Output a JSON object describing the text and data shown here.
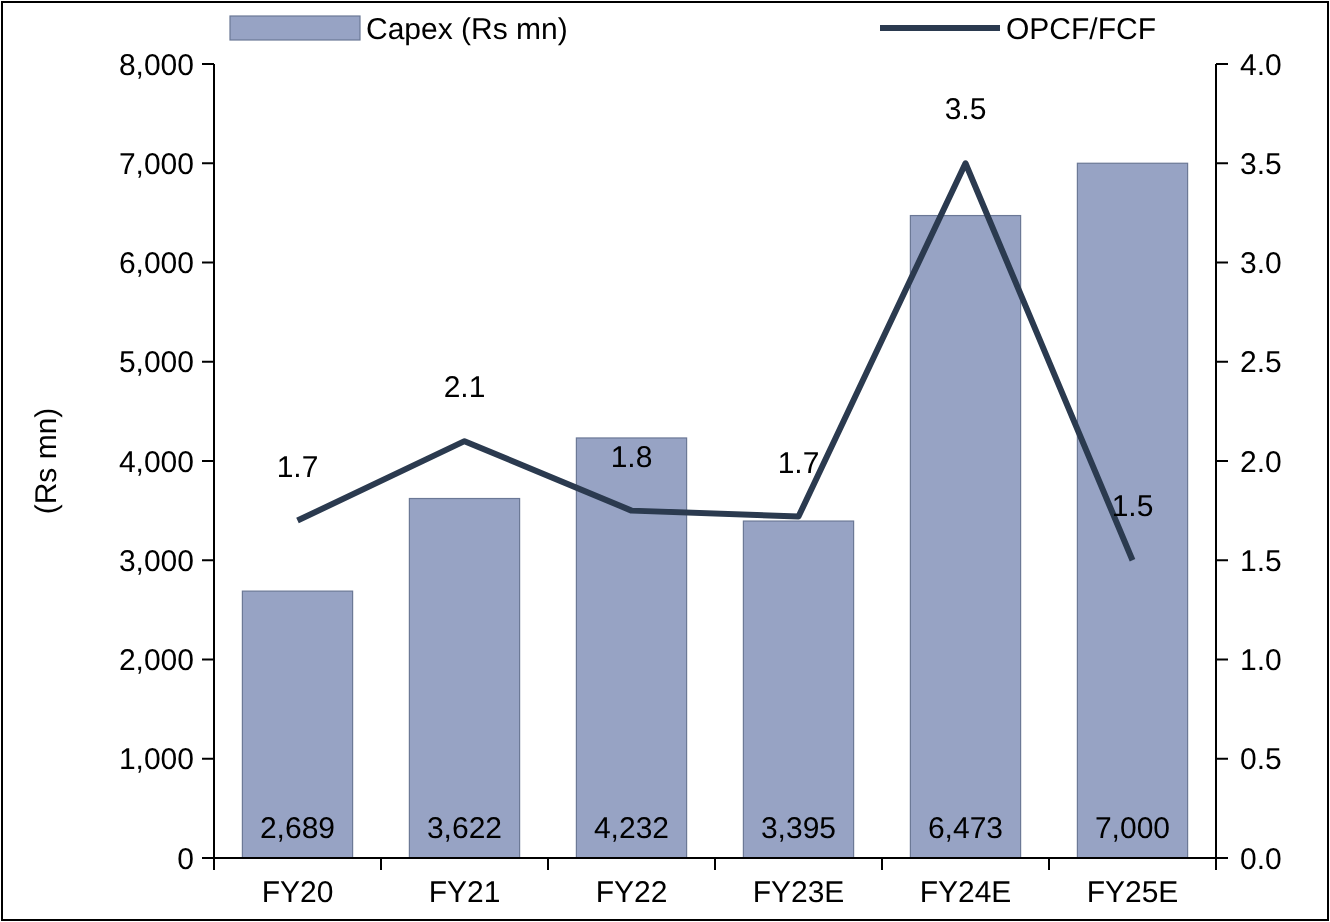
{
  "chart_data": {
    "type": "bar",
    "categories": [
      "FY20",
      "FY21",
      "FY22",
      "FY23E",
      "FY24E",
      "FY25E"
    ],
    "ylabel": "(Rs mn)",
    "series": [
      {
        "name": "Capex (Rs mn)",
        "color": "#97a3c4",
        "values": [
          2689,
          3622,
          4232,
          3395,
          6473,
          7000
        ],
        "value_labels": [
          "2,689",
          "3,622",
          "4,232",
          "3,395",
          "6,473",
          "7,000"
        ]
      },
      {
        "name": "OPCF/FCF",
        "type": "line",
        "axis": "y2",
        "color": "#2b3a4f",
        "values": [
          1.7,
          2.1,
          1.75,
          1.72,
          3.5,
          1.5
        ],
        "value_labels": [
          "1.7",
          "2.1",
          "1.8",
          "1.7",
          "3.5",
          "1.5"
        ]
      }
    ],
    "ylim": [
      0,
      8000
    ],
    "yticks": [
      0,
      {
        "value": 1000,
        "label": "1,000"
      },
      {
        "value": 2000,
        "label": "2,000"
      },
      {
        "value": 3000,
        "label": "3,000"
      },
      {
        "value": 4000,
        "label": "4,000"
      },
      {
        "value": 5000,
        "label": "5,000"
      },
      {
        "value": 6000,
        "label": "6,000"
      },
      {
        "value": 7000,
        "label": "7,000"
      },
      {
        "value": 8000,
        "label": "8,000"
      }
    ],
    "y2lim": [
      0,
      4
    ],
    "y2ticks": [
      {
        "value": 0,
        "label": "0.0"
      },
      0.5,
      {
        "value": 1,
        "label": "1.0"
      },
      1.5,
      {
        "value": 2,
        "label": "2.0"
      },
      2.5,
      {
        "value": 3,
        "label": "3.0"
      },
      3.5,
      {
        "value": 4,
        "label": "4.0"
      }
    ],
    "grid": false,
    "legend": "top",
    "marker": "none",
    "line_style": "solid"
  }
}
